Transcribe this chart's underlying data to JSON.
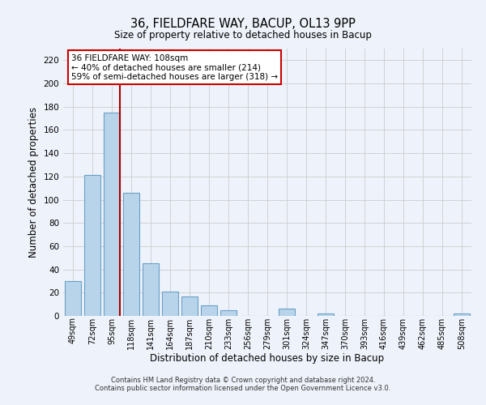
{
  "title": "36, FIELDFARE WAY, BACUP, OL13 9PP",
  "subtitle": "Size of property relative to detached houses in Bacup",
  "xlabel": "Distribution of detached houses by size in Bacup",
  "ylabel": "Number of detached properties",
  "bar_color": "#b8d4ea",
  "bar_edge_color": "#6aa0c8",
  "grid_color": "#cccccc",
  "bg_color": "#eef2fa",
  "annotation_text": "36 FIELDFARE WAY: 108sqm\n← 40% of detached houses are smaller (214)\n59% of semi-detached houses are larger (318) →",
  "annotation_box_color": "#ffffff",
  "annotation_border_color": "#cc0000",
  "marker_line_color": "#aa0000",
  "categories": [
    "49sqm",
    "72sqm",
    "95sqm",
    "118sqm",
    "141sqm",
    "164sqm",
    "187sqm",
    "210sqm",
    "233sqm",
    "256sqm",
    "279sqm",
    "301sqm",
    "324sqm",
    "347sqm",
    "370sqm",
    "393sqm",
    "416sqm",
    "439sqm",
    "462sqm",
    "485sqm",
    "508sqm"
  ],
  "values": [
    30,
    121,
    175,
    106,
    45,
    21,
    17,
    9,
    5,
    0,
    0,
    6,
    0,
    2,
    0,
    0,
    0,
    0,
    0,
    0,
    2
  ],
  "ylim": [
    0,
    230
  ],
  "yticks": [
    0,
    20,
    40,
    60,
    80,
    100,
    120,
    140,
    160,
    180,
    200,
    220
  ],
  "marker_bar_index": 2,
  "footer_line1": "Contains HM Land Registry data © Crown copyright and database right 2024.",
  "footer_line2": "Contains public sector information licensed under the Open Government Licence v3.0."
}
